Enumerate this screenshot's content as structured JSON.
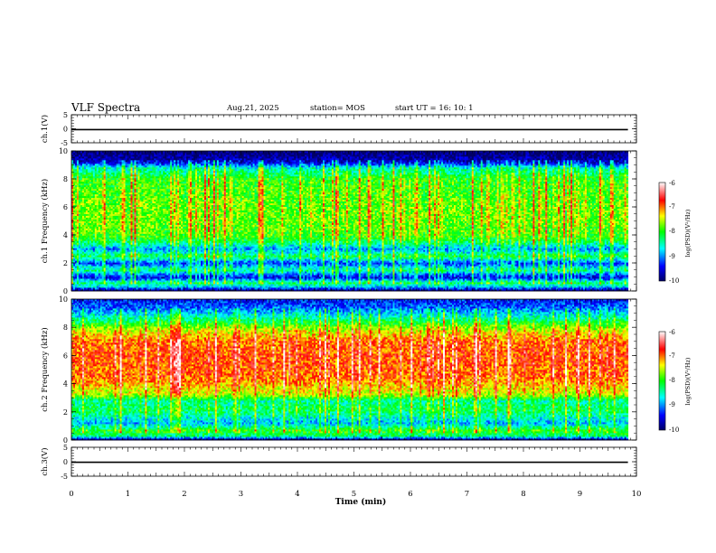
{
  "header": {
    "title": "VLF Spectra",
    "date": "Aug.21, 2025",
    "station": "station= MOS",
    "start": "start  UT =   16: 10: 1"
  },
  "colorbar": {
    "label": "log(PSD)(V²/Hz)",
    "ticks": [
      "-6",
      "-7",
      "-8",
      "-9",
      "-10"
    ]
  },
  "chart_data": [
    {
      "type": "line",
      "id": "ch1-waveform",
      "ylabel": "ch.1(V)",
      "ylim": [
        -5,
        5
      ],
      "yticks": [
        "5",
        "0",
        "-5"
      ],
      "xlim": [
        0,
        10
      ],
      "x": [
        0,
        9.85
      ],
      "values": [
        -0.3,
        -0.3
      ]
    },
    {
      "type": "heatmap",
      "id": "ch1-spectrogram",
      "ylabel": "ch.1 Frequency (kHz)",
      "ylim": [
        0,
        10
      ],
      "yticks": [
        "0",
        "2",
        "4",
        "6",
        "8",
        "10"
      ],
      "xlim": [
        0,
        10
      ],
      "x_end": 9.85,
      "clim": [
        -10,
        -6
      ],
      "colormap": [
        "#000066",
        "#0000ff",
        "#00ffff",
        "#00ff00",
        "#ffff00",
        "#ff0000",
        "#ffffff"
      ],
      "freq_profile_khz": [
        0,
        0.3,
        0.6,
        1.0,
        1.5,
        2.0,
        2.5,
        3.0,
        3.5,
        4.0,
        5.0,
        6.0,
        7.0,
        8.0,
        8.8,
        9.2,
        10.0
      ],
      "psd_profile_log": [
        -10.0,
        -8.8,
        -8.3,
        -9.6,
        -8.4,
        -9.3,
        -8.2,
        -9.0,
        -8.3,
        -7.9,
        -7.8,
        -7.8,
        -7.9,
        -8.0,
        -8.6,
        -9.6,
        -10.0
      ]
    },
    {
      "type": "heatmap",
      "id": "ch2-spectrogram",
      "ylabel": "ch.2 Frequency (kHz)",
      "ylim": [
        0,
        10
      ],
      "yticks": [
        "0",
        "2",
        "4",
        "6",
        "8",
        "10"
      ],
      "xlim": [
        0,
        10
      ],
      "x_end": 9.85,
      "clim": [
        -10,
        -6
      ],
      "colormap": [
        "#000066",
        "#0000ff",
        "#00ffff",
        "#00ff00",
        "#ffff00",
        "#ff0000",
        "#ffffff"
      ],
      "freq_profile_khz": [
        0,
        0.3,
        0.7,
        1.2,
        1.6,
        2.2,
        2.8,
        3.2,
        3.8,
        4.5,
        6.0,
        7.0,
        7.8,
        8.5,
        9.2,
        10.0
      ],
      "psd_profile_log": [
        -10.0,
        -8.3,
        -8.0,
        -8.9,
        -8.6,
        -8.2,
        -8.5,
        -7.6,
        -7.3,
        -7.0,
        -6.9,
        -7.0,
        -7.5,
        -8.3,
        -9.0,
        -9.4
      ]
    },
    {
      "type": "line",
      "id": "ch3-waveform",
      "ylabel": "ch.3(V)",
      "ylim": [
        -5,
        5
      ],
      "yticks": [
        "5",
        "0",
        "-5"
      ],
      "xlim": [
        0,
        10
      ],
      "x": [
        0,
        9.85
      ],
      "values": [
        -0.2,
        -0.2
      ]
    }
  ],
  "xaxis": {
    "xlabel": "Time  (min)",
    "ticks": [
      "0",
      "1",
      "2",
      "3",
      "4",
      "5",
      "6",
      "7",
      "8",
      "9",
      "10"
    ]
  }
}
